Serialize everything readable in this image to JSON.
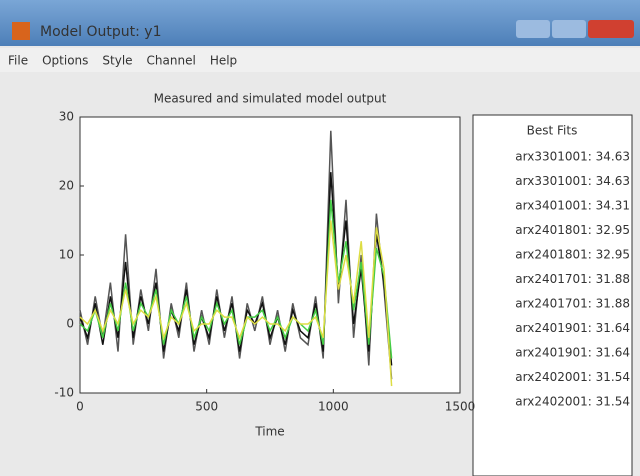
{
  "window": {
    "title": "Model Output: y1",
    "menu": [
      "File",
      "Options",
      "Style",
      "Channel",
      "Help"
    ]
  },
  "chart_data": {
    "type": "line",
    "title": "Measured and simulated model output",
    "x_label": "Time",
    "x": [
      0,
      30,
      60,
      90,
      120,
      150,
      180,
      210,
      240,
      270,
      300,
      330,
      360,
      390,
      420,
      450,
      480,
      510,
      540,
      570,
      600,
      630,
      660,
      690,
      720,
      750,
      780,
      810,
      840,
      870,
      900,
      930,
      960,
      990,
      1020,
      1050,
      1080,
      1110,
      1140,
      1170,
      1200,
      1230
    ],
    "series": [
      {
        "color": "#555555",
        "values": [
          2,
          -3,
          4,
          -2,
          6,
          -4,
          13,
          -3,
          5,
          -1,
          8,
          -5,
          3,
          -2,
          6,
          -4,
          2,
          -3,
          5,
          -2,
          4,
          -5,
          3,
          -1,
          4,
          -3,
          2,
          -4,
          3,
          -2,
          -3,
          4,
          -5,
          28,
          3,
          18,
          -2,
          10,
          -6,
          16,
          5,
          -8
        ]
      },
      {
        "color": "#111111",
        "values": [
          1,
          -2,
          3,
          -3,
          4,
          -2,
          9,
          -2,
          4,
          0,
          6,
          -4,
          2,
          -1,
          5,
          -3,
          1,
          -2,
          4,
          -1,
          3,
          -4,
          2,
          0,
          3,
          -2,
          1,
          -3,
          2,
          -1,
          -2,
          3,
          -4,
          22,
          5,
          15,
          0,
          8,
          -4,
          13,
          6,
          -6
        ]
      },
      {
        "color": "#44cc44",
        "values": [
          0,
          -1,
          2,
          -2,
          3,
          -1,
          6,
          -1,
          3,
          1,
          5,
          -3,
          2,
          0,
          4,
          -2,
          1,
          -1,
          3,
          0,
          2,
          -3,
          1,
          1,
          2,
          -1,
          1,
          -2,
          1,
          0,
          -1,
          2,
          -3,
          18,
          6,
          12,
          2,
          9,
          -3,
          11,
          7,
          -5
        ]
      },
      {
        "color": "#dddd44",
        "values": [
          1,
          0,
          2,
          -1,
          2,
          0,
          5,
          0,
          2,
          1,
          4,
          -2,
          1,
          0,
          3,
          -1,
          0,
          0,
          2,
          1,
          1,
          -2,
          1,
          0,
          1,
          0,
          0,
          -1,
          1,
          0,
          0,
          1,
          -2,
          15,
          5,
          10,
          3,
          12,
          -2,
          14,
          8,
          -9
        ]
      }
    ],
    "xlim": [
      0,
      1500
    ],
    "xticks": [
      0,
      500,
      1000,
      1500
    ],
    "ylim": [
      -10,
      30
    ],
    "yticks": [
      -10,
      0,
      10,
      20,
      30
    ],
    "grid": false
  },
  "best_fits": {
    "title": "Best Fits",
    "entries": [
      {
        "label": "arx3301001: 34.63",
        "color": "#777777"
      },
      {
        "label": "arx3301001: 34.63",
        "color": "#999999"
      },
      {
        "label": "arx3401001: 34.31",
        "color": "#222222"
      },
      {
        "label": "arx2401801: 32.95",
        "color": "#c8c83a"
      },
      {
        "label": "arx2401801: 32.95",
        "color": "#8a8a30"
      },
      {
        "label": "arx2401701: 31.88",
        "color": "#33cc33"
      },
      {
        "label": "arx2401701: 31.88",
        "color": "#55dd55"
      },
      {
        "label": "arx2401901: 31.64",
        "color": "#ee8899"
      },
      {
        "label": "arx2401901: 31.64",
        "color": "#ee99aa"
      },
      {
        "label": "arx2402001: 31.54",
        "color": "#222277"
      },
      {
        "label": "arx2402001: 31.54",
        "color": "#333388"
      }
    ]
  }
}
